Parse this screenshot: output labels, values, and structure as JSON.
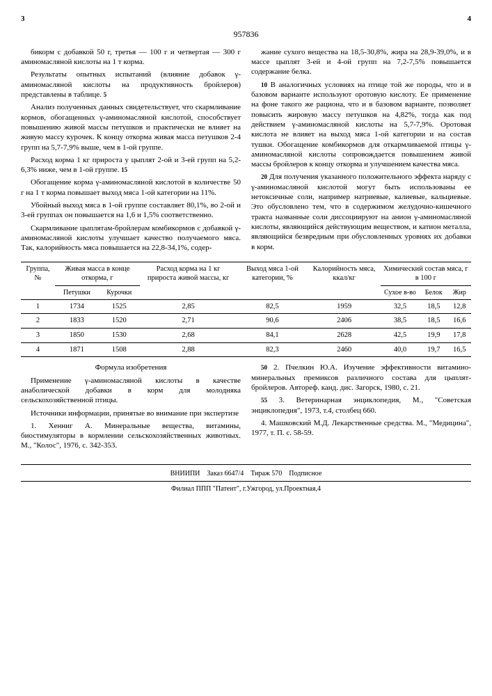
{
  "docNumber": "957836",
  "page_left": "3",
  "page_right": "4",
  "leftCol": {
    "p1": "бикорм с добавкой 50 г, третья — 100 г и четвертая — 300 г аминомасляной кислоты на 1 т корма.",
    "p2": "Результаты опытных испытаний (влияние добавок γ-аминомасляной кислоты на продуктивность бройлеров) представлены в таблице.",
    "p3": "Анализ полученных данных свидетельствует, что скармливание кормов, обогащенных γ-аминомасляной кислотой, способствует повышению живой массы петушков и практически не влияет на живую массу курочек. К концу откорма живая масса петушков 2-4 групп на 5,7-7,9% выше, чем в 1-ой группе.",
    "p4": "Расход корма 1 кг прироста у цыплят 2-ой и 3-ей групп на 5,2-6,3% ниже, чем в 1-ой группе.",
    "p5": "Обогащение корма γ-аминомасляной кислотой в количестве 50 г на 1 т корма повышает выход мяса 1-ой категории на 11%.",
    "p6": "Убойный выход мяса в 1-ой группе составляет 80,1%, во 2-ой и 3-ей группах он повышается на 1,6 и 1,5% соответственно.",
    "p7": "Скармливание цыплятам-бройлерам комбикормов с добавкой γ-аминомасляной кислоты улучшает качество получаемого мяса. Так, калорийность мяса повышается на 22,8-34,1%, содер-"
  },
  "rightCol": {
    "p1": "жание сухого вещества на 18,5-30,8%, жира на 28,9-39,0%, и в массе цыплят 3-ей и 4-ой групп на 7,2-7,5% повышается содержание белка.",
    "p2": "В аналогичных условиях на птице той же породы, что и в базовом варианте используют оротовую кислоту. Ее применение на фоне такого же рациона, что и в базовом варианте, позволяет повысить жировую массу петушков на 4,82%, тогда как под действием γ-аминомасляной кислоты на 5,7-7,9%. Оротовая кислота не влияет на выход мяса 1-ой категории и на состав тушки. Обогащение комбикормов для откармливаемой птицы γ-аминомасляной кислоты сопровождается повышением живой массы бройлеров к концу откорма и улучшением качества мяса.",
    "p3": "Для получения указанного положительного эффекта наряду с γ-аминомасляной кислотой могут быть использованы ее нетоксичные соли, например натриевые, калиевые, кальциевые. Это обусловлено тем, что в содержимом желудочно-кишечного тракта названные соли диссоциируют на анион γ-аминомасляной кислоты, являющийся действующим веществом, и катион металла, являющийся безвредным при обусловленных уровнях их добавки в корм."
  },
  "table": {
    "headers": {
      "group": "Группа, №",
      "mass": "Живая масса в конце откорма, г",
      "feed": "Расход корма на 1 кг прироста живой массы, кг",
      "yield": "Выход мяса 1-ой категории, %",
      "calorie": "Калорийность мяса, ккал/кг",
      "chem": "Химический состав мяса, г в 100 г",
      "sub_pet": "Петушки",
      "sub_kur": "Курочки",
      "sub_dry": "Сухое в-во",
      "sub_prot": "Белок",
      "sub_fat": "Жир"
    },
    "rows": [
      {
        "g": "1",
        "p": "1734",
        "k": "1525",
        "f": "2,85",
        "y": "82,5",
        "c": "1959",
        "d": "32,5",
        "pr": "18,5",
        "fa": "12,8"
      },
      {
        "g": "2",
        "p": "1833",
        "k": "1520",
        "f": "2,71",
        "y": "90,6",
        "c": "2406",
        "d": "38,5",
        "pr": "18,5",
        "fa": "16,6"
      },
      {
        "g": "3",
        "p": "1850",
        "k": "1530",
        "f": "2,68",
        "y": "84,1",
        "c": "2628",
        "d": "42,5",
        "pr": "19,9",
        "fa": "17,8"
      },
      {
        "g": "4",
        "p": "1871",
        "k": "1508",
        "f": "2,88",
        "y": "82,3",
        "c": "2460",
        "d": "40,0",
        "pr": "19,7",
        "fa": "16,5"
      }
    ]
  },
  "formula": {
    "title": "Формула изобретения",
    "text": "Применение γ-аминомасляной кислоты в качестве анаболической добавки в корм для молодняка сельскохозяйственной птицы.",
    "sources_title": "Источники информации, принятые во внимание при экспертизе",
    "s1": "1. Хенниг А. Минеральные вещества, витамины, биостимуляторы в кормлении сельскохозяйственных животных. М., \"Колос\", 1976, с. 342-353.",
    "s2": "2. Пчелкин Ю.А. Изучение эффективности витамино-минеральных премиксов различного состава для цыплят-бройлеров. Автореф. канд. дис. Загорск, 1980, с. 21.",
    "s3": "3. Ветеринарная энциклопедия, М., \"Советская энциклопедия\", 1973, т.4, столбец 660.",
    "s4": "4. Машковский М.Д. Лекарственные средства. М., \"Медицина\", 1977, т. П. с. 58-59."
  },
  "footer": {
    "line1_a": "ВНИИПИ",
    "line1_b": "Заказ 6647/4",
    "line1_c": "Тираж 570",
    "line1_d": "Подписное",
    "line2": "Филиал ППП \"Патент\", г.Ужгород, ул.Проектная,4"
  },
  "markers": {
    "m5": "5",
    "m10": "10",
    "m15": "15",
    "m20": "20",
    "m25": "25",
    "m50": "50",
    "m55": "55"
  }
}
